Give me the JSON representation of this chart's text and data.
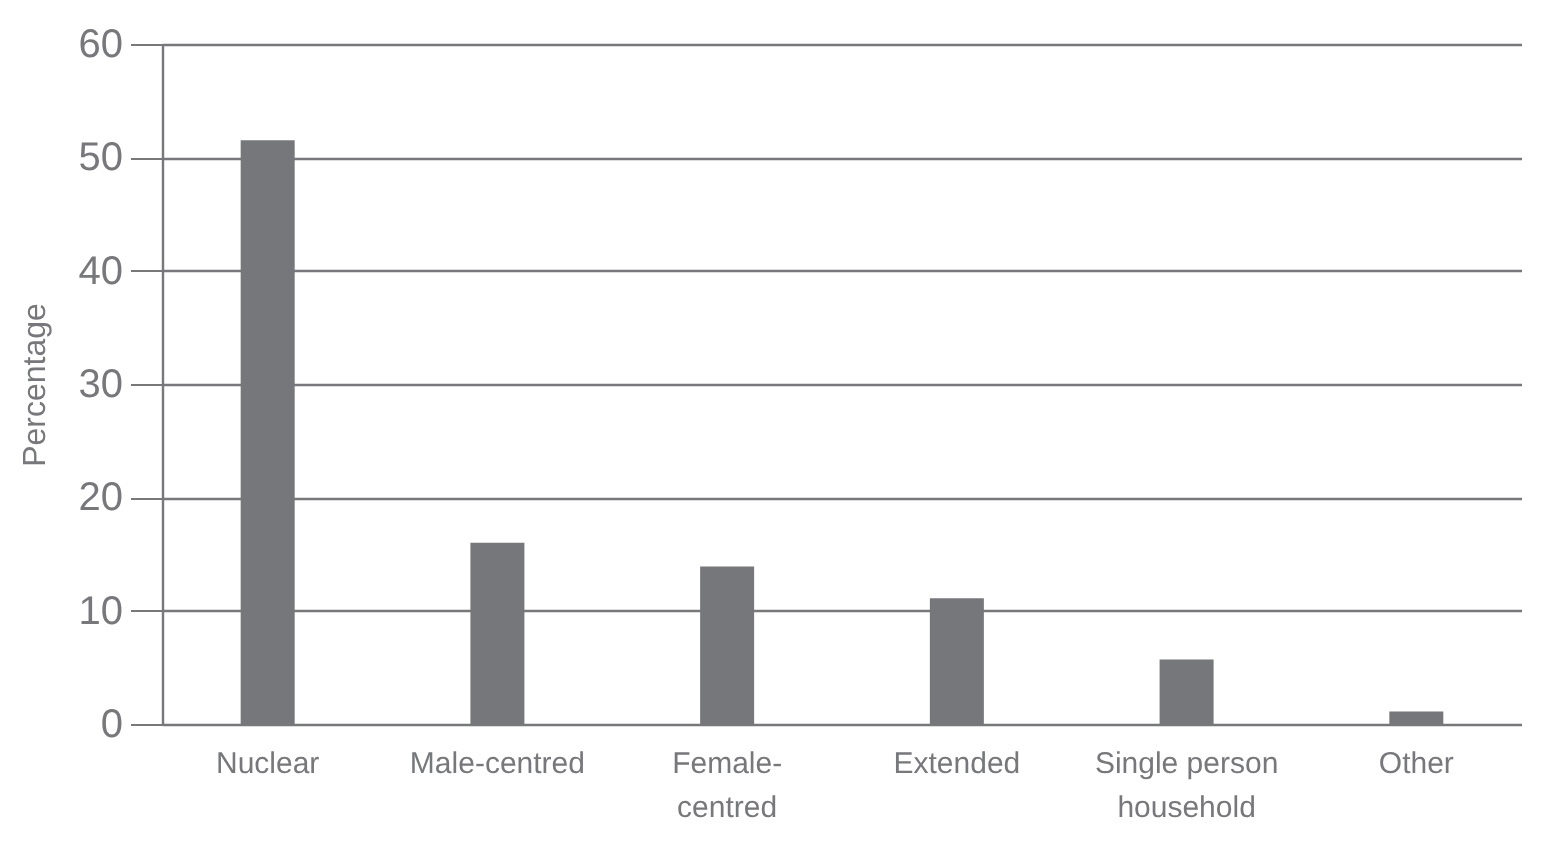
{
  "chart_data": {
    "type": "bar",
    "ylabel": "Percentage",
    "categories": [
      "Nuclear",
      "Male-centred",
      "Female-centred",
      "Extended",
      "Single person household",
      "Other"
    ],
    "values": [
      51.5,
      16,
      13.9,
      11.1,
      5.7,
      1.1
    ],
    "color": "#76777b",
    "ylim": [
      0,
      60
    ],
    "yticks": [
      0,
      10,
      20,
      30,
      40,
      50,
      60
    ],
    "grid": "y"
  }
}
